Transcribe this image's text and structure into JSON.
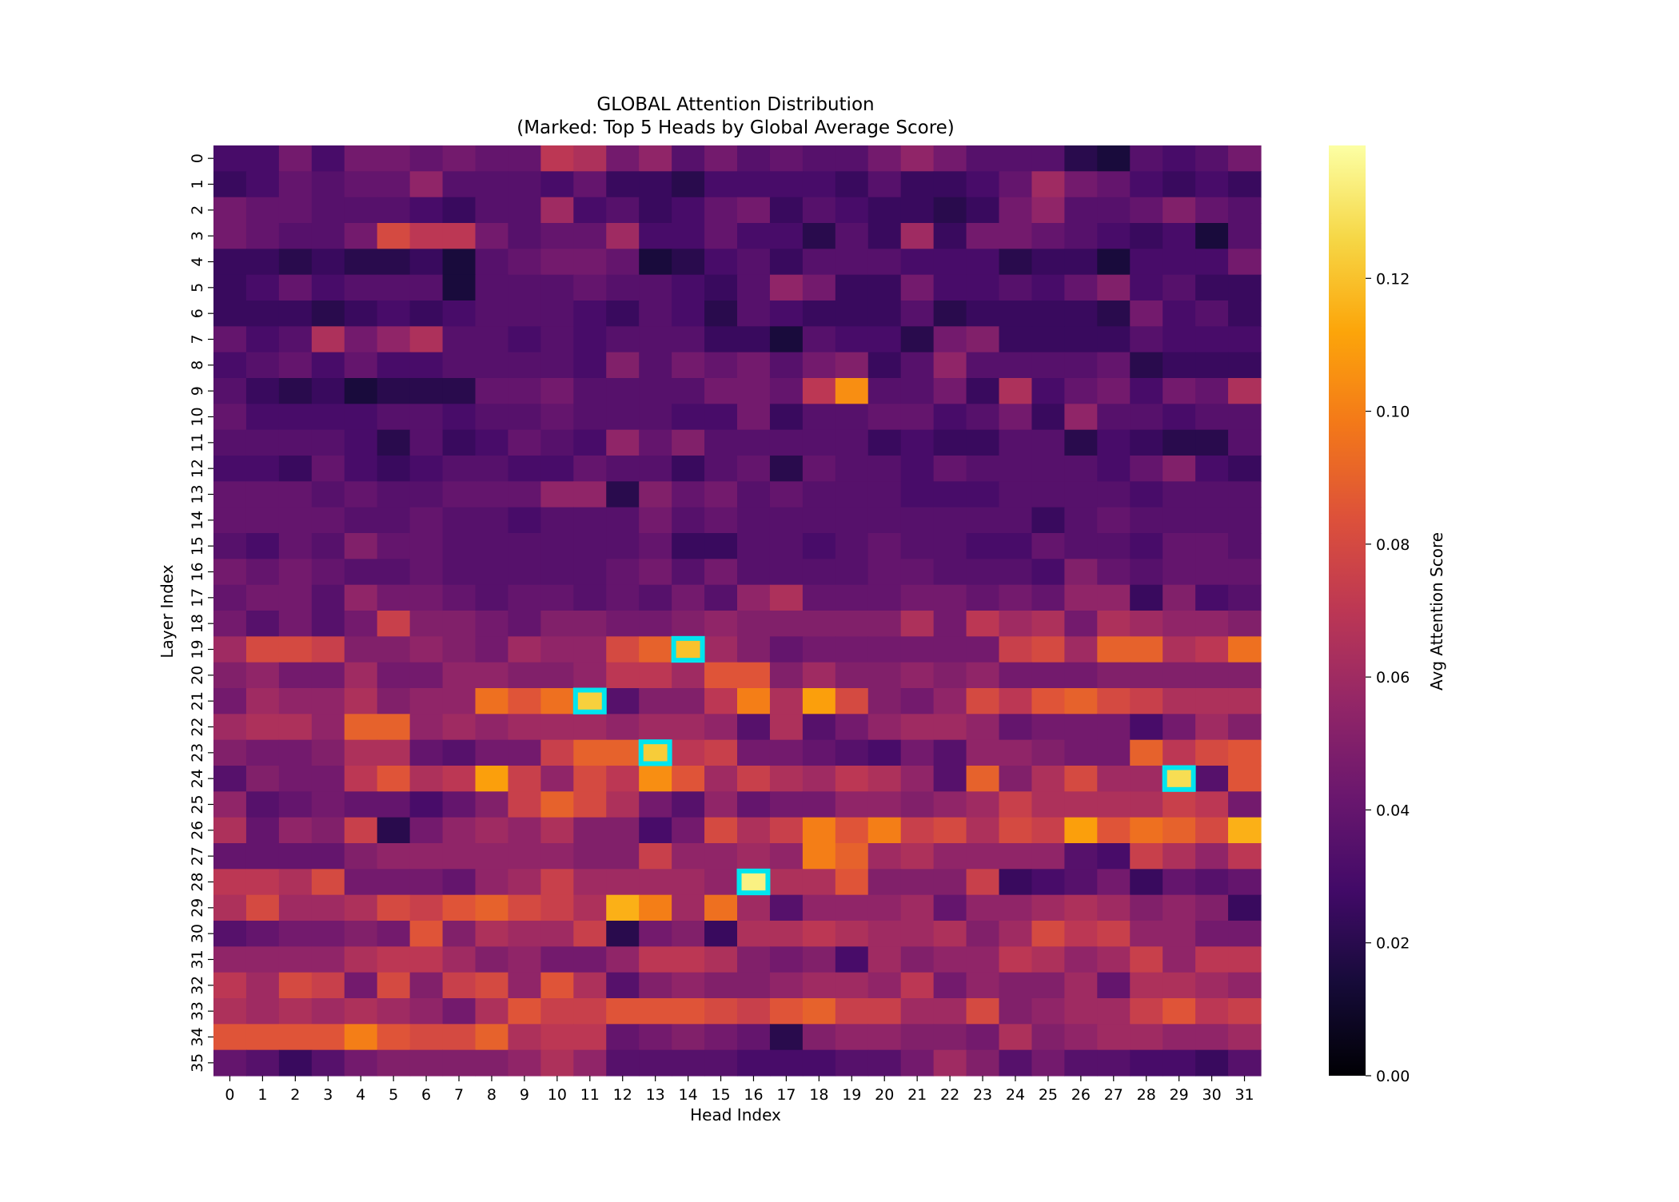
{
  "chart_data": {
    "type": "heatmap",
    "title": "GLOBAL Attention Distribution",
    "subtitle": "(Marked: Top 5 Heads by Global Average Score)",
    "xlabel": "Head Index",
    "ylabel": "Layer Index",
    "colorbar_label": "Avg Attention Score",
    "colormap": "inferno",
    "vmin": 0.0,
    "vmax": 0.14,
    "colorbar_ticks": [
      "0.00",
      "0.02",
      "0.04",
      "0.06",
      "0.08",
      "0.10",
      "0.12"
    ],
    "colorbar_tick_values": [
      0.0,
      0.02,
      0.04,
      0.06,
      0.08,
      0.1,
      0.12
    ],
    "x_ticks": [
      "0",
      "1",
      "2",
      "3",
      "4",
      "5",
      "6",
      "7",
      "8",
      "9",
      "10",
      "11",
      "12",
      "13",
      "14",
      "15",
      "16",
      "17",
      "18",
      "19",
      "20",
      "21",
      "22",
      "23",
      "24",
      "25",
      "26",
      "27",
      "28",
      "29",
      "30",
      "31"
    ],
    "y_ticks": [
      "0",
      "1",
      "2",
      "3",
      "4",
      "5",
      "6",
      "7",
      "8",
      "9",
      "10",
      "11",
      "12",
      "13",
      "14",
      "15",
      "16",
      "17",
      "18",
      "19",
      "20",
      "21",
      "22",
      "23",
      "24",
      "25",
      "26",
      "27",
      "28",
      "29",
      "30",
      "31",
      "32",
      "33",
      "34",
      "35"
    ],
    "highlight_color": "#00e5ee",
    "highlighted_cells": [
      {
        "layer": 28,
        "head": 16
      },
      {
        "layer": 24,
        "head": 29
      },
      {
        "layer": 21,
        "head": 11
      },
      {
        "layer": 23,
        "head": 13
      },
      {
        "layer": 19,
        "head": 14
      }
    ],
    "values": [
      [
        0.03,
        0.03,
        0.045,
        0.03,
        0.045,
        0.045,
        0.04,
        0.045,
        0.04,
        0.04,
        0.07,
        0.065,
        0.045,
        0.055,
        0.035,
        0.045,
        0.035,
        0.04,
        0.035,
        0.035,
        0.045,
        0.055,
        0.045,
        0.035,
        0.035,
        0.035,
        0.02,
        0.015,
        0.035,
        0.03,
        0.035,
        0.045
      ],
      [
        0.025,
        0.03,
        0.04,
        0.035,
        0.04,
        0.04,
        0.055,
        0.035,
        0.035,
        0.035,
        0.03,
        0.04,
        0.025,
        0.025,
        0.02,
        0.03,
        0.03,
        0.03,
        0.03,
        0.025,
        0.035,
        0.025,
        0.025,
        0.03,
        0.04,
        0.06,
        0.045,
        0.04,
        0.03,
        0.025,
        0.03,
        0.025
      ],
      [
        0.045,
        0.04,
        0.04,
        0.035,
        0.035,
        0.035,
        0.03,
        0.025,
        0.035,
        0.035,
        0.06,
        0.03,
        0.035,
        0.025,
        0.03,
        0.04,
        0.045,
        0.025,
        0.035,
        0.03,
        0.025,
        0.025,
        0.02,
        0.025,
        0.045,
        0.055,
        0.035,
        0.035,
        0.04,
        0.05,
        0.04,
        0.035
      ],
      [
        0.045,
        0.04,
        0.035,
        0.035,
        0.045,
        0.08,
        0.07,
        0.07,
        0.045,
        0.035,
        0.04,
        0.04,
        0.06,
        0.03,
        0.03,
        0.04,
        0.03,
        0.03,
        0.02,
        0.035,
        0.025,
        0.06,
        0.025,
        0.045,
        0.045,
        0.04,
        0.035,
        0.03,
        0.025,
        0.03,
        0.015,
        0.035
      ],
      [
        0.025,
        0.025,
        0.02,
        0.025,
        0.02,
        0.02,
        0.025,
        0.015,
        0.035,
        0.04,
        0.045,
        0.045,
        0.04,
        0.015,
        0.02,
        0.03,
        0.035,
        0.025,
        0.035,
        0.035,
        0.035,
        0.03,
        0.03,
        0.03,
        0.02,
        0.025,
        0.025,
        0.015,
        0.03,
        0.03,
        0.03,
        0.045
      ],
      [
        0.025,
        0.03,
        0.04,
        0.03,
        0.035,
        0.035,
        0.035,
        0.015,
        0.035,
        0.035,
        0.035,
        0.04,
        0.035,
        0.035,
        0.03,
        0.025,
        0.035,
        0.055,
        0.045,
        0.025,
        0.025,
        0.045,
        0.03,
        0.03,
        0.035,
        0.03,
        0.04,
        0.05,
        0.03,
        0.035,
        0.025,
        0.025
      ],
      [
        0.025,
        0.025,
        0.025,
        0.02,
        0.025,
        0.03,
        0.025,
        0.03,
        0.035,
        0.035,
        0.035,
        0.03,
        0.025,
        0.035,
        0.03,
        0.02,
        0.035,
        0.03,
        0.025,
        0.025,
        0.025,
        0.035,
        0.02,
        0.025,
        0.025,
        0.025,
        0.025,
        0.02,
        0.045,
        0.03,
        0.035,
        0.025
      ],
      [
        0.04,
        0.03,
        0.035,
        0.065,
        0.045,
        0.055,
        0.065,
        0.035,
        0.035,
        0.03,
        0.035,
        0.03,
        0.035,
        0.035,
        0.035,
        0.025,
        0.025,
        0.015,
        0.035,
        0.03,
        0.03,
        0.02,
        0.045,
        0.05,
        0.025,
        0.025,
        0.025,
        0.025,
        0.035,
        0.03,
        0.03,
        0.03
      ],
      [
        0.03,
        0.035,
        0.04,
        0.03,
        0.04,
        0.03,
        0.03,
        0.035,
        0.035,
        0.035,
        0.035,
        0.03,
        0.05,
        0.035,
        0.045,
        0.04,
        0.045,
        0.035,
        0.045,
        0.05,
        0.025,
        0.035,
        0.055,
        0.035,
        0.035,
        0.035,
        0.035,
        0.04,
        0.02,
        0.025,
        0.025,
        0.025
      ],
      [
        0.035,
        0.025,
        0.02,
        0.025,
        0.015,
        0.02,
        0.02,
        0.02,
        0.04,
        0.04,
        0.045,
        0.035,
        0.035,
        0.035,
        0.035,
        0.045,
        0.045,
        0.04,
        0.07,
        0.105,
        0.035,
        0.035,
        0.045,
        0.025,
        0.065,
        0.03,
        0.04,
        0.045,
        0.03,
        0.045,
        0.04,
        0.065
      ],
      [
        0.04,
        0.03,
        0.03,
        0.03,
        0.03,
        0.035,
        0.035,
        0.03,
        0.035,
        0.035,
        0.04,
        0.035,
        0.035,
        0.035,
        0.03,
        0.03,
        0.045,
        0.025,
        0.035,
        0.035,
        0.04,
        0.04,
        0.03,
        0.035,
        0.045,
        0.025,
        0.055,
        0.035,
        0.035,
        0.03,
        0.035,
        0.035
      ],
      [
        0.035,
        0.035,
        0.035,
        0.035,
        0.03,
        0.02,
        0.035,
        0.025,
        0.03,
        0.04,
        0.035,
        0.03,
        0.055,
        0.04,
        0.05,
        0.035,
        0.035,
        0.035,
        0.035,
        0.035,
        0.025,
        0.03,
        0.025,
        0.025,
        0.035,
        0.035,
        0.02,
        0.03,
        0.025,
        0.02,
        0.02,
        0.035
      ],
      [
        0.03,
        0.03,
        0.025,
        0.04,
        0.03,
        0.025,
        0.03,
        0.035,
        0.035,
        0.03,
        0.03,
        0.04,
        0.035,
        0.035,
        0.025,
        0.035,
        0.04,
        0.02,
        0.04,
        0.035,
        0.035,
        0.03,
        0.04,
        0.035,
        0.035,
        0.035,
        0.035,
        0.03,
        0.04,
        0.05,
        0.03,
        0.025
      ],
      [
        0.04,
        0.04,
        0.04,
        0.035,
        0.04,
        0.035,
        0.035,
        0.04,
        0.04,
        0.04,
        0.055,
        0.055,
        0.02,
        0.05,
        0.04,
        0.045,
        0.035,
        0.04,
        0.035,
        0.035,
        0.035,
        0.03,
        0.03,
        0.03,
        0.035,
        0.035,
        0.035,
        0.035,
        0.03,
        0.035,
        0.035,
        0.035
      ],
      [
        0.04,
        0.04,
        0.04,
        0.04,
        0.035,
        0.035,
        0.04,
        0.035,
        0.035,
        0.03,
        0.035,
        0.035,
        0.035,
        0.045,
        0.035,
        0.04,
        0.035,
        0.035,
        0.035,
        0.035,
        0.035,
        0.035,
        0.035,
        0.035,
        0.035,
        0.025,
        0.035,
        0.04,
        0.035,
        0.035,
        0.035,
        0.035
      ],
      [
        0.035,
        0.03,
        0.04,
        0.035,
        0.05,
        0.04,
        0.04,
        0.035,
        0.035,
        0.035,
        0.035,
        0.035,
        0.035,
        0.04,
        0.025,
        0.025,
        0.035,
        0.035,
        0.03,
        0.035,
        0.04,
        0.035,
        0.035,
        0.03,
        0.03,
        0.04,
        0.035,
        0.035,
        0.03,
        0.04,
        0.04,
        0.035
      ],
      [
        0.045,
        0.04,
        0.045,
        0.04,
        0.035,
        0.035,
        0.04,
        0.035,
        0.035,
        0.035,
        0.035,
        0.035,
        0.04,
        0.045,
        0.035,
        0.045,
        0.035,
        0.035,
        0.035,
        0.035,
        0.04,
        0.04,
        0.035,
        0.035,
        0.035,
        0.03,
        0.05,
        0.04,
        0.035,
        0.04,
        0.04,
        0.04
      ],
      [
        0.04,
        0.045,
        0.045,
        0.035,
        0.055,
        0.045,
        0.045,
        0.04,
        0.035,
        0.04,
        0.04,
        0.035,
        0.04,
        0.035,
        0.045,
        0.035,
        0.055,
        0.065,
        0.04,
        0.04,
        0.04,
        0.045,
        0.045,
        0.04,
        0.045,
        0.04,
        0.055,
        0.055,
        0.025,
        0.05,
        0.03,
        0.035
      ],
      [
        0.045,
        0.035,
        0.045,
        0.035,
        0.045,
        0.075,
        0.05,
        0.05,
        0.045,
        0.04,
        0.05,
        0.05,
        0.045,
        0.045,
        0.05,
        0.055,
        0.05,
        0.05,
        0.05,
        0.05,
        0.05,
        0.065,
        0.045,
        0.07,
        0.06,
        0.065,
        0.045,
        0.065,
        0.06,
        0.055,
        0.055,
        0.05
      ],
      [
        0.06,
        0.08,
        0.08,
        0.075,
        0.05,
        0.05,
        0.055,
        0.05,
        0.045,
        0.06,
        0.055,
        0.055,
        0.08,
        0.09,
        0.12,
        0.06,
        0.05,
        0.04,
        0.045,
        0.045,
        0.045,
        0.045,
        0.045,
        0.045,
        0.075,
        0.08,
        0.06,
        0.09,
        0.09,
        0.065,
        0.07,
        0.095
      ],
      [
        0.05,
        0.055,
        0.045,
        0.045,
        0.06,
        0.045,
        0.045,
        0.055,
        0.055,
        0.05,
        0.05,
        0.055,
        0.07,
        0.07,
        0.06,
        0.085,
        0.085,
        0.05,
        0.06,
        0.05,
        0.05,
        0.055,
        0.05,
        0.055,
        0.045,
        0.045,
        0.045,
        0.05,
        0.05,
        0.05,
        0.05,
        0.05
      ],
      [
        0.045,
        0.06,
        0.055,
        0.055,
        0.065,
        0.05,
        0.055,
        0.055,
        0.095,
        0.085,
        0.095,
        0.124,
        0.035,
        0.05,
        0.05,
        0.07,
        0.1,
        0.065,
        0.11,
        0.08,
        0.05,
        0.045,
        0.055,
        0.08,
        0.07,
        0.085,
        0.09,
        0.08,
        0.075,
        0.065,
        0.065,
        0.065
      ],
      [
        0.06,
        0.065,
        0.065,
        0.055,
        0.09,
        0.09,
        0.055,
        0.06,
        0.055,
        0.06,
        0.06,
        0.06,
        0.055,
        0.06,
        0.06,
        0.055,
        0.035,
        0.065,
        0.035,
        0.045,
        0.055,
        0.06,
        0.06,
        0.055,
        0.04,
        0.045,
        0.045,
        0.045,
        0.03,
        0.045,
        0.06,
        0.05
      ],
      [
        0.05,
        0.045,
        0.045,
        0.05,
        0.065,
        0.065,
        0.04,
        0.035,
        0.045,
        0.045,
        0.075,
        0.09,
        0.09,
        0.123,
        0.07,
        0.075,
        0.045,
        0.045,
        0.04,
        0.035,
        0.03,
        0.045,
        0.035,
        0.055,
        0.055,
        0.05,
        0.045,
        0.045,
        0.09,
        0.07,
        0.08,
        0.085
      ],
      [
        0.035,
        0.05,
        0.045,
        0.045,
        0.07,
        0.085,
        0.065,
        0.07,
        0.11,
        0.075,
        0.055,
        0.08,
        0.07,
        0.105,
        0.085,
        0.06,
        0.075,
        0.065,
        0.06,
        0.07,
        0.065,
        0.055,
        0.035,
        0.09,
        0.05,
        0.065,
        0.08,
        0.06,
        0.06,
        0.128,
        0.035,
        0.085
      ],
      [
        0.055,
        0.035,
        0.04,
        0.045,
        0.04,
        0.04,
        0.03,
        0.04,
        0.05,
        0.075,
        0.09,
        0.08,
        0.065,
        0.045,
        0.035,
        0.055,
        0.04,
        0.045,
        0.045,
        0.055,
        0.055,
        0.05,
        0.055,
        0.06,
        0.075,
        0.065,
        0.065,
        0.065,
        0.065,
        0.075,
        0.07,
        0.045
      ],
      [
        0.065,
        0.04,
        0.055,
        0.05,
        0.075,
        0.02,
        0.045,
        0.055,
        0.06,
        0.055,
        0.065,
        0.05,
        0.05,
        0.03,
        0.045,
        0.08,
        0.065,
        0.075,
        0.1,
        0.085,
        0.1,
        0.075,
        0.08,
        0.065,
        0.08,
        0.075,
        0.11,
        0.085,
        0.095,
        0.09,
        0.08,
        0.115
      ],
      [
        0.04,
        0.04,
        0.04,
        0.04,
        0.05,
        0.055,
        0.055,
        0.055,
        0.055,
        0.055,
        0.055,
        0.05,
        0.05,
        0.075,
        0.055,
        0.055,
        0.06,
        0.055,
        0.1,
        0.09,
        0.06,
        0.065,
        0.055,
        0.055,
        0.055,
        0.055,
        0.035,
        0.03,
        0.075,
        0.065,
        0.055,
        0.07
      ],
      [
        0.07,
        0.07,
        0.065,
        0.08,
        0.045,
        0.045,
        0.045,
        0.04,
        0.055,
        0.06,
        0.075,
        0.06,
        0.06,
        0.06,
        0.06,
        0.055,
        0.135,
        0.065,
        0.065,
        0.085,
        0.05,
        0.05,
        0.05,
        0.075,
        0.025,
        0.03,
        0.035,
        0.045,
        0.025,
        0.04,
        0.035,
        0.04
      ],
      [
        0.065,
        0.08,
        0.06,
        0.06,
        0.065,
        0.08,
        0.075,
        0.085,
        0.09,
        0.08,
        0.075,
        0.065,
        0.115,
        0.1,
        0.06,
        0.095,
        0.06,
        0.035,
        0.055,
        0.055,
        0.055,
        0.06,
        0.04,
        0.055,
        0.055,
        0.06,
        0.065,
        0.06,
        0.05,
        0.055,
        0.05,
        0.025
      ],
      [
        0.035,
        0.04,
        0.045,
        0.045,
        0.05,
        0.045,
        0.085,
        0.05,
        0.065,
        0.06,
        0.06,
        0.075,
        0.02,
        0.045,
        0.05,
        0.025,
        0.065,
        0.065,
        0.07,
        0.065,
        0.06,
        0.06,
        0.065,
        0.05,
        0.06,
        0.08,
        0.07,
        0.075,
        0.055,
        0.055,
        0.045,
        0.045
      ],
      [
        0.055,
        0.055,
        0.055,
        0.055,
        0.065,
        0.07,
        0.07,
        0.06,
        0.05,
        0.055,
        0.045,
        0.045,
        0.055,
        0.07,
        0.07,
        0.065,
        0.05,
        0.045,
        0.05,
        0.03,
        0.06,
        0.05,
        0.055,
        0.055,
        0.07,
        0.065,
        0.055,
        0.06,
        0.075,
        0.055,
        0.07,
        0.07
      ],
      [
        0.07,
        0.06,
        0.08,
        0.075,
        0.045,
        0.08,
        0.05,
        0.075,
        0.08,
        0.055,
        0.085,
        0.065,
        0.035,
        0.05,
        0.055,
        0.05,
        0.05,
        0.055,
        0.06,
        0.06,
        0.055,
        0.07,
        0.045,
        0.055,
        0.05,
        0.05,
        0.06,
        0.04,
        0.065,
        0.065,
        0.06,
        0.055
      ],
      [
        0.065,
        0.06,
        0.065,
        0.06,
        0.065,
        0.06,
        0.055,
        0.045,
        0.065,
        0.085,
        0.075,
        0.075,
        0.085,
        0.085,
        0.085,
        0.08,
        0.075,
        0.085,
        0.09,
        0.075,
        0.075,
        0.06,
        0.06,
        0.08,
        0.05,
        0.055,
        0.06,
        0.06,
        0.075,
        0.085,
        0.07,
        0.075
      ],
      [
        0.085,
        0.085,
        0.085,
        0.085,
        0.1,
        0.085,
        0.08,
        0.08,
        0.09,
        0.065,
        0.07,
        0.07,
        0.04,
        0.045,
        0.05,
        0.045,
        0.04,
        0.02,
        0.05,
        0.055,
        0.055,
        0.05,
        0.05,
        0.045,
        0.065,
        0.05,
        0.055,
        0.06,
        0.06,
        0.055,
        0.055,
        0.06
      ],
      [
        0.04,
        0.035,
        0.025,
        0.035,
        0.045,
        0.05,
        0.05,
        0.05,
        0.05,
        0.055,
        0.065,
        0.055,
        0.035,
        0.035,
        0.035,
        0.035,
        0.03,
        0.03,
        0.03,
        0.035,
        0.035,
        0.045,
        0.06,
        0.05,
        0.035,
        0.045,
        0.035,
        0.035,
        0.03,
        0.03,
        0.025,
        0.035
      ]
    ]
  }
}
